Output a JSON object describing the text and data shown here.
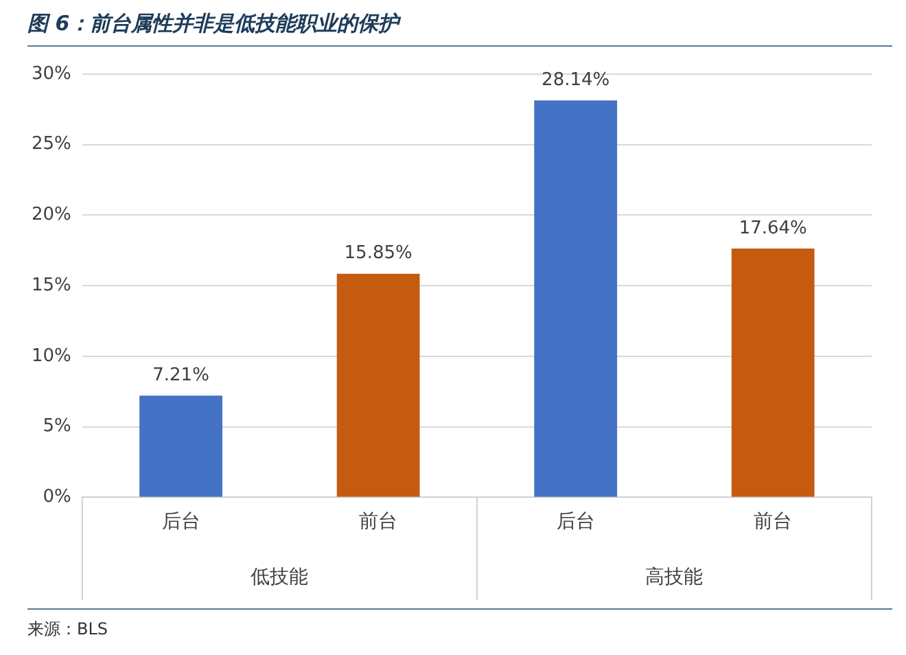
{
  "chart_data": {
    "type": "bar",
    "title": "图 6：前台属性并非是低技能职业的保护",
    "categories": [
      "后台",
      "前台",
      "后台",
      "前台"
    ],
    "values": [
      7.21,
      15.85,
      28.14,
      17.64
    ],
    "colors": [
      "#4472c4",
      "#c55a11",
      "#4472c4",
      "#c55a11"
    ],
    "value_labels": [
      "7.21%",
      "15.85%",
      "28.14%",
      "17.64%"
    ],
    "ylim": [
      0,
      30
    ],
    "yticks": [
      {
        "value": 0,
        "label": "0%"
      },
      {
        "value": 5,
        "label": "5%"
      },
      {
        "value": 10,
        "label": "10%"
      },
      {
        "value": 15,
        "label": "15%"
      },
      {
        "value": 20,
        "label": "20%"
      },
      {
        "value": 25,
        "label": "25%"
      },
      {
        "value": 30,
        "label": "30%"
      }
    ],
    "grid": "y",
    "legend": false,
    "annotations": [
      "低技能",
      "高技能",
      "来源：BLS"
    ]
  }
}
